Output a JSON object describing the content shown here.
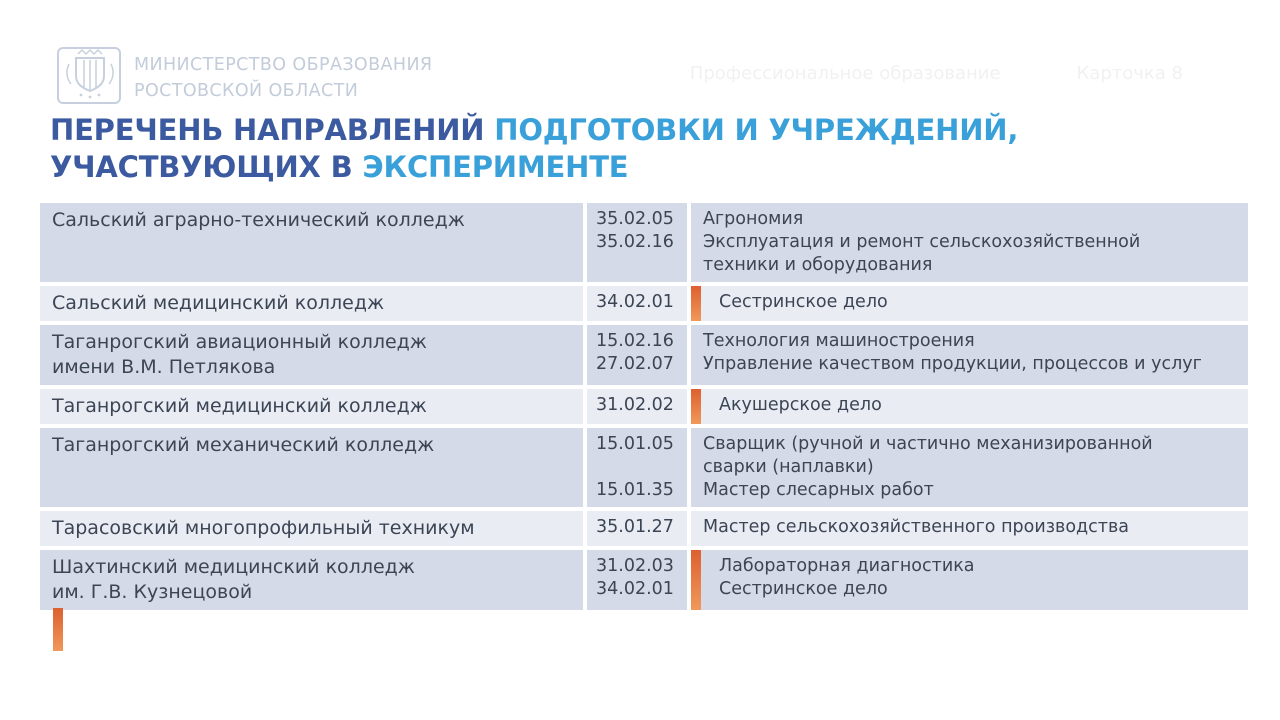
{
  "header": {
    "logo": "rostov-region-coat-of-arms",
    "ministry_line1": "МИНИСТЕРСТВО ОБРАЗОВАНИЯ",
    "ministry_line2": "РОСТОВСКОЙ ОБЛАСТИ",
    "section_label": "Профессиональное образование",
    "card_label": "Карточка 8"
  },
  "title": {
    "line1": [
      {
        "text": "ПЕРЕЧЕНЬ НАПРАВЛЕНИЙ ",
        "tone": "dark"
      },
      {
        "text": "ПОДГОТОВКИ И УЧРЕЖДЕНИЙ,",
        "tone": "light"
      }
    ],
    "line2": [
      {
        "text": "УЧАСТВУЮЩИХ В ",
        "tone": "dark"
      },
      {
        "text": "ЭКСПЕРИМЕНТЕ",
        "tone": "light"
      }
    ]
  },
  "table": {
    "rows": [
      {
        "college": [
          "Сальский аграрно-технический колледж"
        ],
        "codes": [
          "35.02.05",
          "35.02.16"
        ],
        "programs": [
          "Агрономия",
          "Эксплуатация и ремонт сельскохозяйственной",
          "техники и оборудования"
        ],
        "accent_bar": false
      },
      {
        "college": [
          "Сальский медицинский колледж"
        ],
        "codes": [
          "34.02.01"
        ],
        "programs": [
          "Сестринское дело"
        ],
        "accent_bar": true
      },
      {
        "college": [
          "Таганрогский авиационный колледж",
          "имени В.М. Петлякова"
        ],
        "codes": [
          "15.02.16",
          "27.02.07"
        ],
        "programs": [
          "Технология машиностроения",
          "Управление качеством продукции, процессов и услуг"
        ],
        "accent_bar": false
      },
      {
        "college": [
          "Таганрогский медицинский колледж"
        ],
        "codes": [
          "31.02.02"
        ],
        "programs": [
          "Акушерское дело"
        ],
        "accent_bar": true
      },
      {
        "college": [
          "Таганрогский механический колледж"
        ],
        "codes": [
          "15.01.05",
          "",
          "15.01.35"
        ],
        "programs": [
          "Сварщик (ручной и частично механизированной",
          "сварки (наплавки)",
          "Мастер слесарных работ"
        ],
        "accent_bar": false
      },
      {
        "college": [
          "Тарасовский многопрофильный техникум"
        ],
        "codes": [
          "35.01.27"
        ],
        "programs": [
          "Мастер сельскохозяйственного производства"
        ],
        "accent_bar": false
      },
      {
        "college": [
          "Шахтинский медицинский колледж",
          "им. Г.В. Кузнецовой"
        ],
        "codes": [
          "31.02.03",
          "34.02.01"
        ],
        "programs": [
          "Лабораторная диагностика",
          "Сестринское дело"
        ],
        "accent_bar": true
      }
    ]
  },
  "colors": {
    "title_dark_blue": "#3c5aa0",
    "title_light_blue": "#3aa0d9",
    "row_shade_dark": "#d5dae8",
    "row_shade_light": "#eaecf4",
    "table_text": "#3c4554",
    "accent_orange_top": "#dd6030",
    "accent_orange_bottom": "#f0985a",
    "logo_tint": "#c7d0de",
    "header_watermark_text": "#f1f1f1"
  }
}
